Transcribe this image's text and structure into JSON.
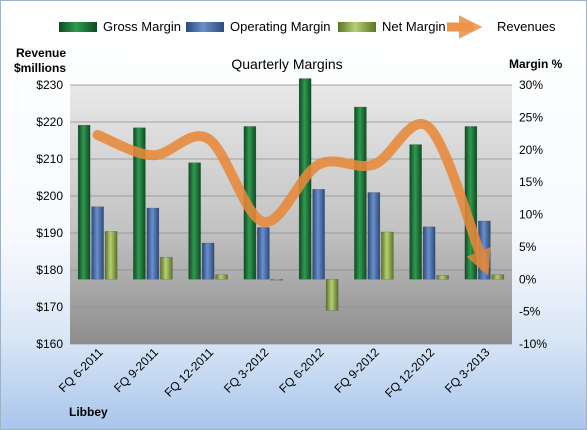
{
  "chart_data": {
    "type": "bar",
    "title": "Quarterly Margins",
    "company": "Libbey",
    "left_axis": {
      "label_line1": "Revenue",
      "label_line2": "$millions",
      "range": [
        160,
        230
      ],
      "ticks": [
        "$160",
        "$170",
        "$180",
        "$190",
        "$200",
        "$210",
        "$220",
        "$230"
      ]
    },
    "right_axis": {
      "label": "Margin %",
      "range": [
        -10,
        30
      ],
      "ticks": [
        "-10%",
        "-5%",
        "0%",
        "5%",
        "10%",
        "15%",
        "20%",
        "25%",
        "30%"
      ]
    },
    "categories": [
      "FQ 6-2011",
      "FQ 9-2011",
      "FQ 12-2011",
      "FQ 3-2012",
      "FQ 6-2012",
      "FQ 9-2012",
      "FQ 12-2012",
      "FQ 3-2013"
    ],
    "series": [
      {
        "name": "Gross Margin",
        "axis": "right",
        "color": "#1e7a3e",
        "values": [
          23.8,
          23.4,
          18.0,
          23.6,
          31.0,
          26.6,
          20.8,
          23.6
        ]
      },
      {
        "name": "Operating Margin",
        "axis": "right",
        "color": "#4a6ea8",
        "values": [
          11.2,
          11.0,
          5.6,
          8.0,
          13.9,
          13.4,
          8.1,
          9.0
        ]
      },
      {
        "name": "Net Margin",
        "axis": "right",
        "color": "#8fae4e",
        "values": [
          7.4,
          3.4,
          0.7,
          -0.1,
          -4.8,
          7.3,
          0.6,
          0.7
        ]
      },
      {
        "name": "Revenues",
        "axis": "left",
        "color": "#e8893a",
        "type": "line",
        "values": [
          216.5,
          211.0,
          215.5,
          193.0,
          208.5,
          208.5,
          218.5,
          181.0
        ]
      }
    ],
    "grid": true,
    "legend": "top"
  }
}
